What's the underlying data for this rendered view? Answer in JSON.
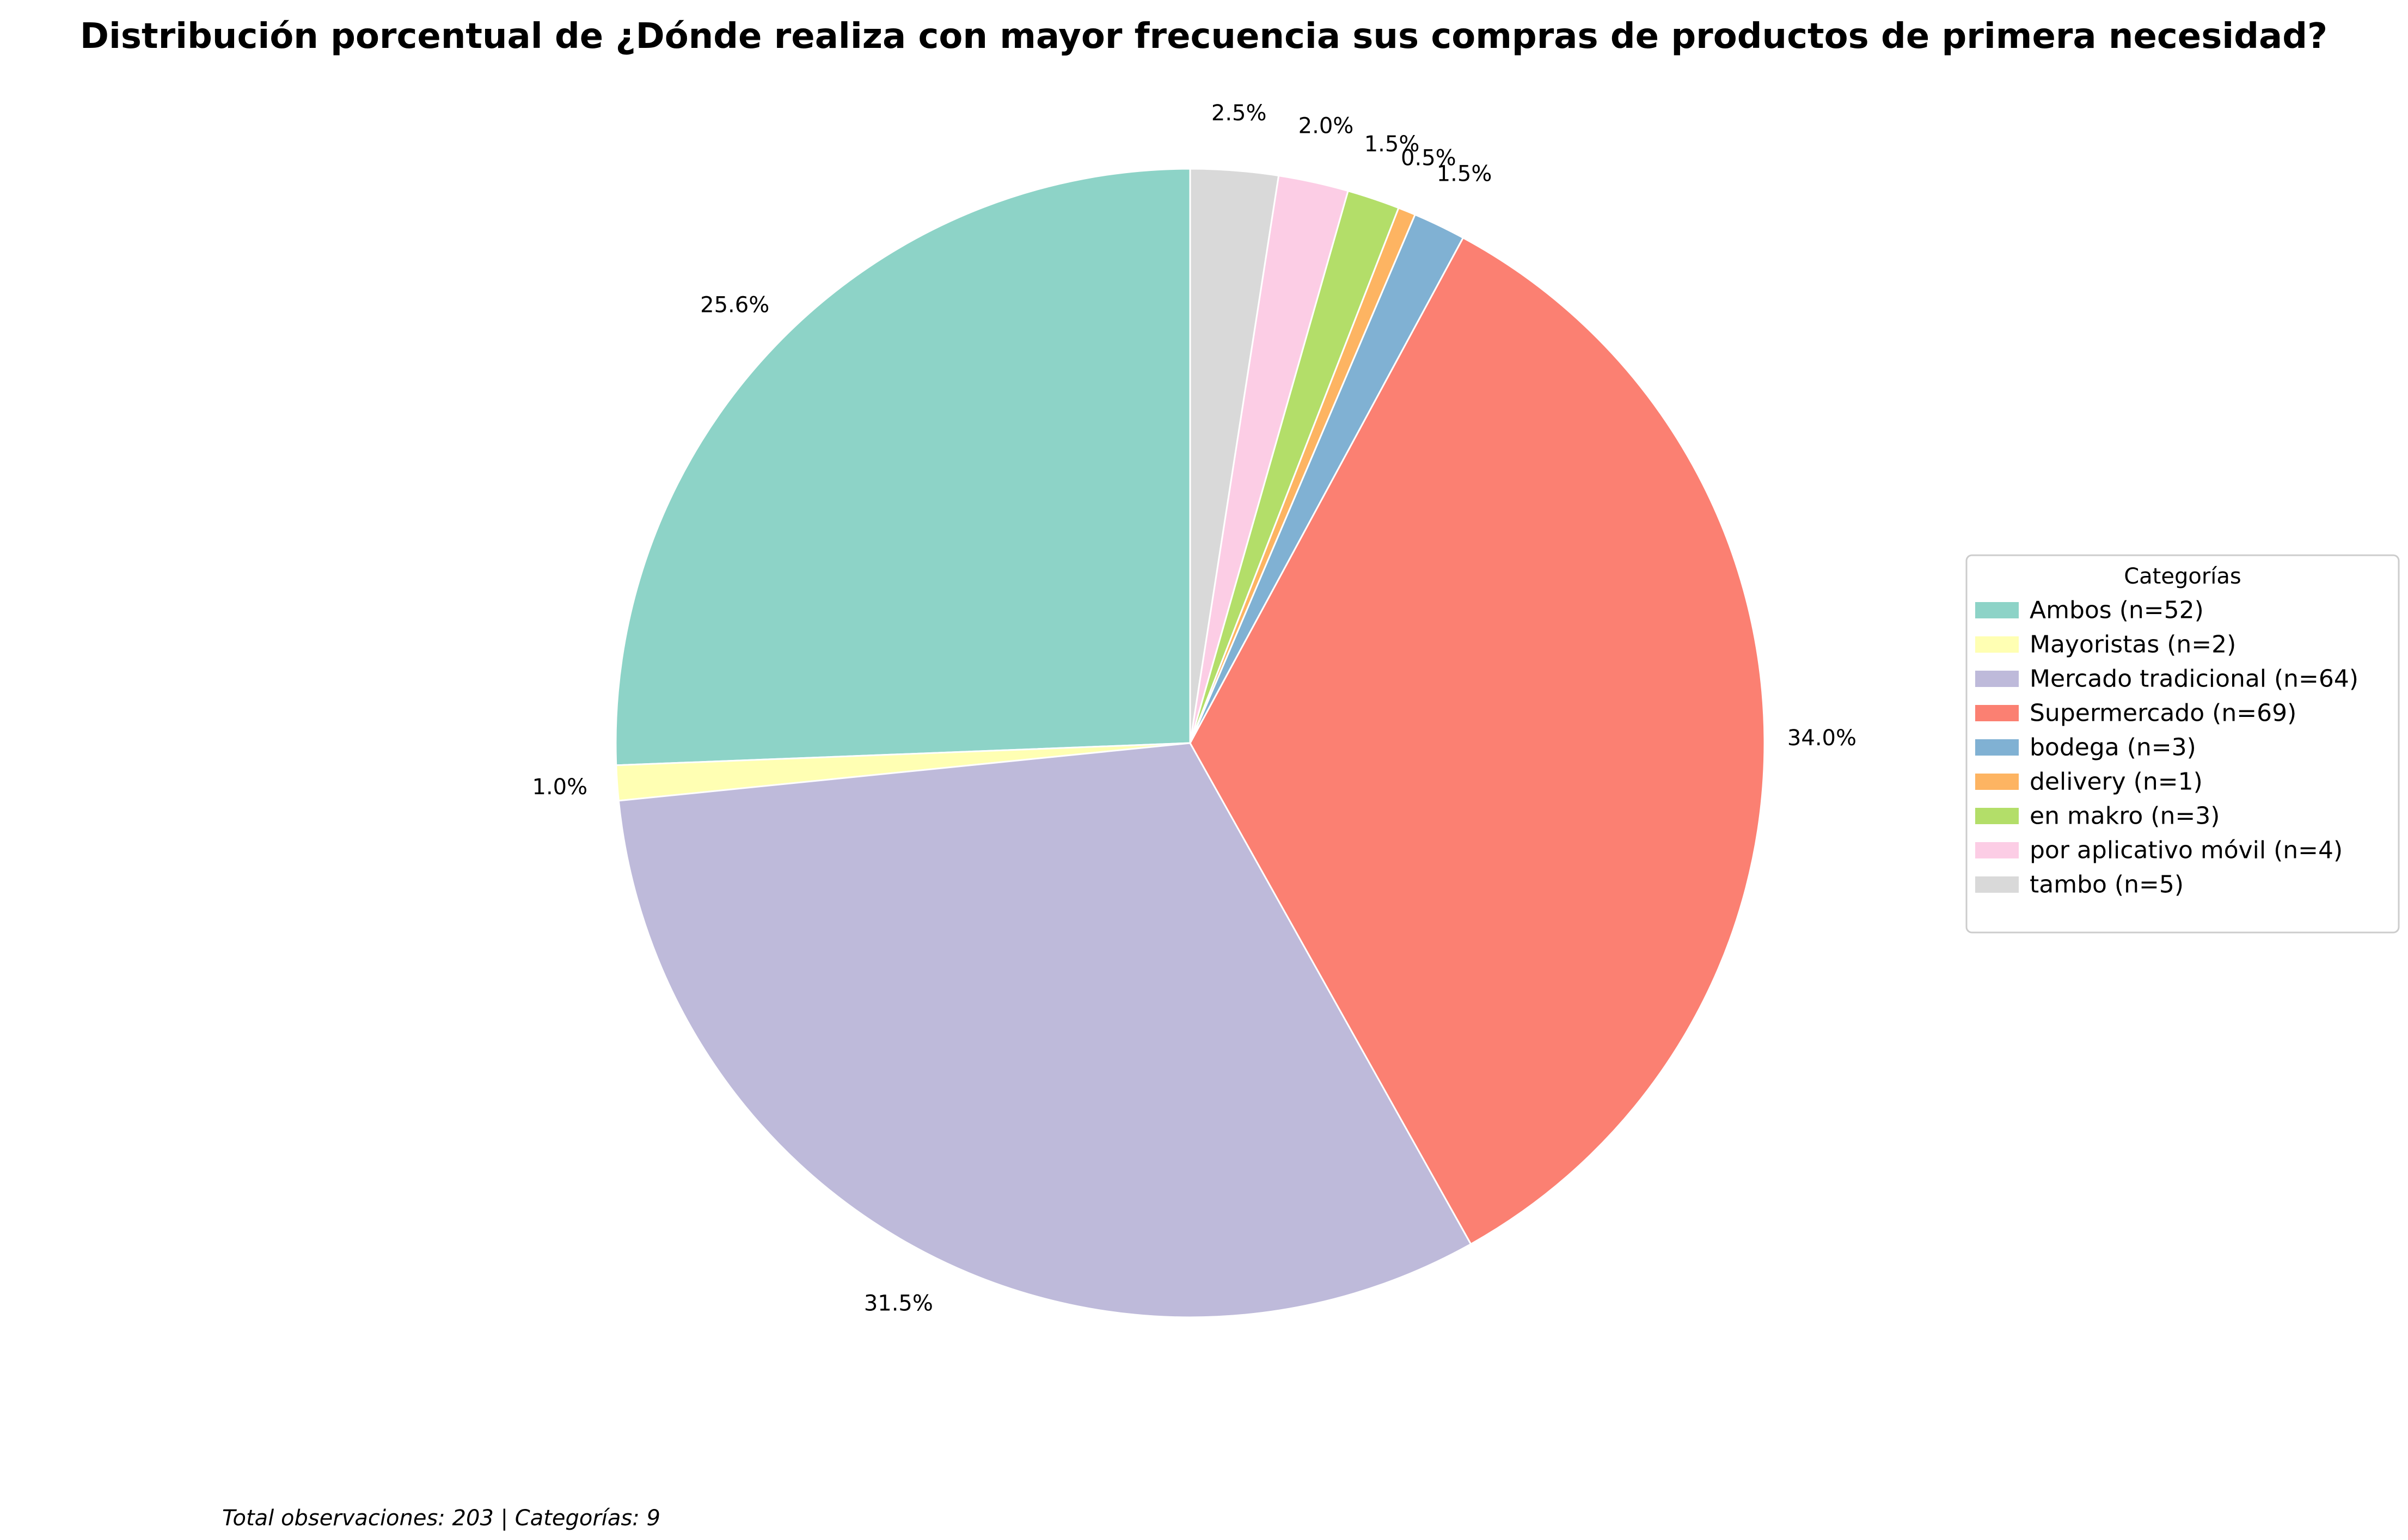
{
  "chart_data": {
    "type": "pie",
    "title": "Distribución porcentual de ¿Dónde realiza con mayor frecuencia sus compras de productos de primera necesidad?",
    "total": 203,
    "slices": [
      {
        "label": "Ambos (n=52)",
        "count": 52,
        "pct_label": "25.6%",
        "color": "#8dd3c7"
      },
      {
        "label": "Mayoristas (n=2)",
        "count": 2,
        "pct_label": "1.0%",
        "color": "#ffffb3"
      },
      {
        "label": "Mercado tradicional (n=64)",
        "count": 64,
        "pct_label": "31.5%",
        "color": "#bebada"
      },
      {
        "label": "Supermercado (n=69)",
        "count": 69,
        "pct_label": "34.0%",
        "color": "#fb8072"
      },
      {
        "label": "bodega (n=3)",
        "count": 3,
        "pct_label": "1.5%",
        "color": "#80b1d3"
      },
      {
        "label": "delivery (n=1)",
        "count": 1,
        "pct_label": "0.5%",
        "color": "#fdb462"
      },
      {
        "label": "en makro (n=3)",
        "count": 3,
        "pct_label": "1.5%",
        "color": "#b3de69"
      },
      {
        "label": "por aplicativo móvil (n=4)",
        "count": 4,
        "pct_label": "2.0%",
        "color": "#fccde5"
      },
      {
        "label": "tambo (n=5)",
        "count": 5,
        "pct_label": "2.5%",
        "color": "#d9d9d9"
      }
    ],
    "start_angle_deg": 90,
    "direction": "counterclockwise",
    "legend_title": "Categorías",
    "legend_placement": "right",
    "footer": "Total observaciones: 203 | Categorías: 9"
  }
}
